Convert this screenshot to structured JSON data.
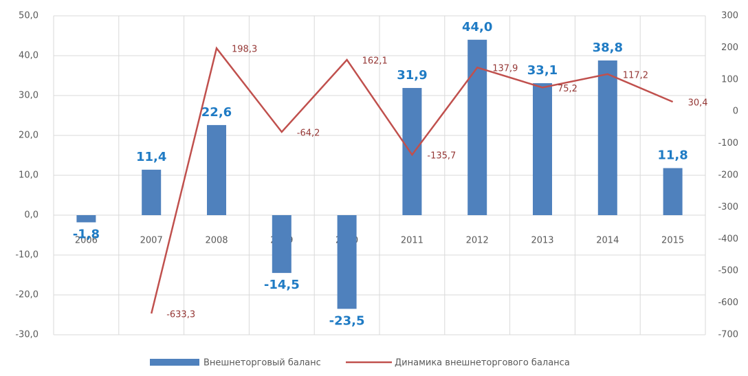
{
  "chart_data": {
    "type": "bar",
    "categories": [
      "2006",
      "2007",
      "2008",
      "2009",
      "2010",
      "2011",
      "2012",
      "2013",
      "2014",
      "2015"
    ],
    "series": [
      {
        "name": "Внешнеторговый баланс",
        "type": "bar",
        "color": "#4f81bd",
        "axis": "y",
        "values": [
          -1.8,
          11.4,
          22.6,
          -14.5,
          -23.5,
          31.9,
          44.0,
          33.1,
          38.8,
          11.8
        ],
        "value_labels": [
          "-1,8",
          "11,4",
          "22,6",
          "-14,5",
          "-23,5",
          "31,9",
          "44,0",
          "33,1",
          "38,8",
          "11,8"
        ]
      },
      {
        "name": "Динамика внешнеторгового баланса",
        "type": "line",
        "color": "#c0504d",
        "axis": "y2",
        "values": [
          null,
          -633.3,
          198.3,
          -64.2,
          162.1,
          -135.7,
          137.9,
          75.2,
          117.2,
          30.4
        ],
        "value_labels": [
          null,
          "-633,3",
          "198,3",
          "-64,2",
          "162,1",
          "-135,7",
          "137,9",
          "75,2",
          "117,2",
          "30,4"
        ]
      }
    ],
    "ylim": [
      -30,
      50
    ],
    "yticks": [
      {
        "value": 50,
        "label": "50,0"
      },
      {
        "value": 40,
        "label": "40,0"
      },
      {
        "value": 30,
        "label": "30,0"
      },
      {
        "value": 20,
        "label": "20,0"
      },
      {
        "value": 10,
        "label": "10,0"
      },
      {
        "value": 0,
        "label": "0,0"
      },
      {
        "value": -10,
        "label": "-10,0"
      },
      {
        "value": -20,
        "label": "-20,0"
      },
      {
        "value": -30,
        "label": "-30,0"
      }
    ],
    "y2lim": [
      -700,
      300
    ],
    "y2ticks": [
      300,
      200,
      100,
      0,
      -100,
      -200,
      -300,
      -400,
      -500,
      -600,
      -700
    ],
    "grid": true
  }
}
